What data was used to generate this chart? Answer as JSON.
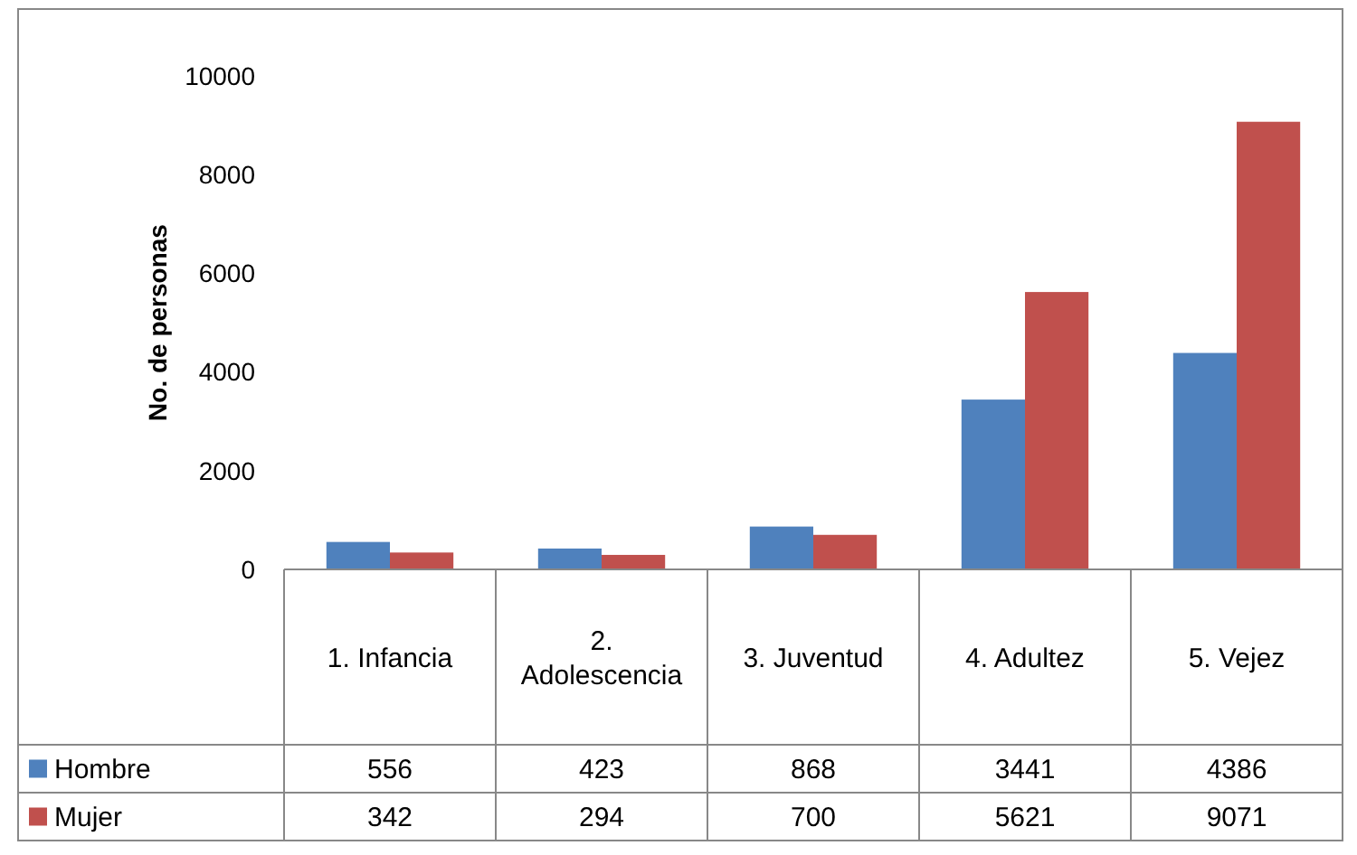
{
  "chart_data": {
    "type": "bar",
    "ylabel": "No. de personas",
    "categories": [
      "1. Infancia",
      "2. Adolescencia",
      "3. Juventud",
      "4. Adultez",
      "5. Vejez"
    ],
    "series": [
      {
        "name": "Hombre",
        "color": "#4f81bd",
        "values": [
          556,
          423,
          868,
          3441,
          4386
        ]
      },
      {
        "name": "Mujer",
        "color": "#c0504d",
        "values": [
          342,
          294,
          700,
          5621,
          9071
        ]
      }
    ],
    "ylim": [
      0,
      10000
    ],
    "yticks": [
      0,
      2000,
      4000,
      6000,
      8000,
      10000
    ],
    "grid": false,
    "legend": "bottom",
    "data_labels": true
  }
}
